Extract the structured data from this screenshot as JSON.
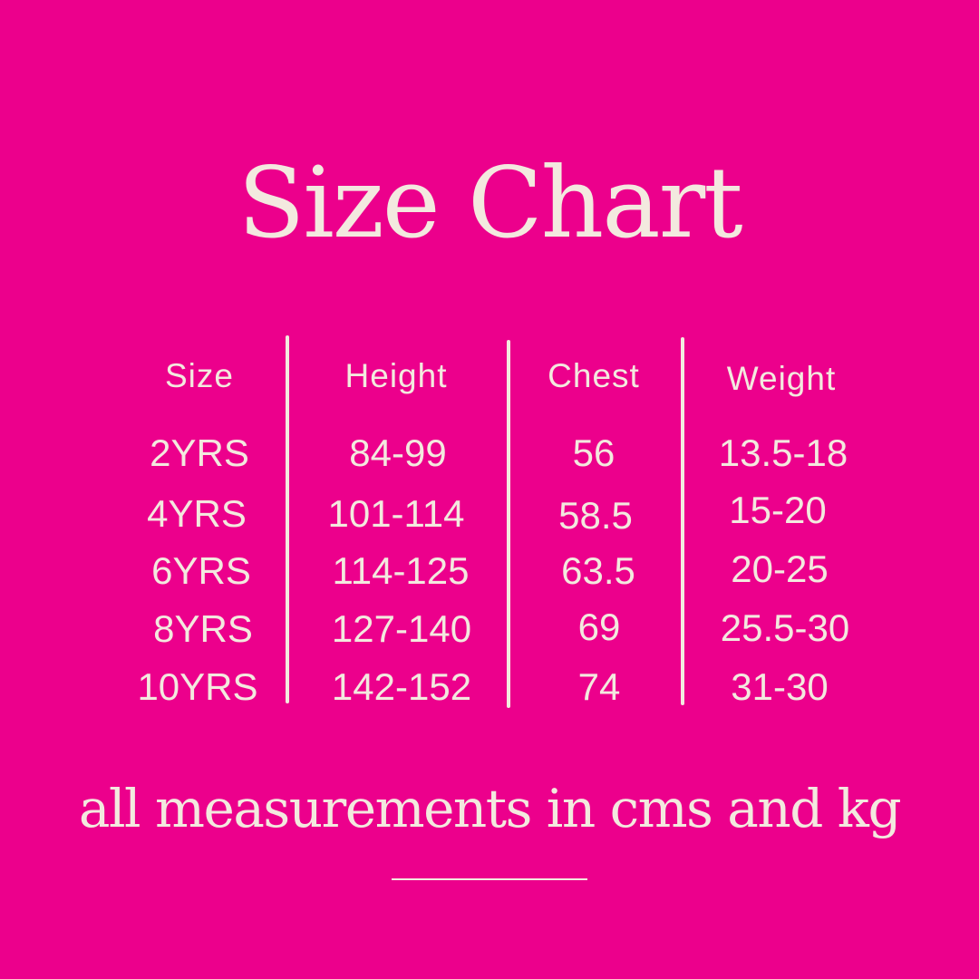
{
  "title": "Size Chart",
  "table": {
    "headers": [
      "Size",
      "Height",
      "Chest",
      "Weight"
    ],
    "rows": [
      [
        "2YRS",
        "84-99",
        "56",
        "13.5-18"
      ],
      [
        "4YRS",
        "101-114",
        "58.5",
        "15-20"
      ],
      [
        "6YRS",
        "114-125",
        "63.5",
        "20-25"
      ],
      [
        "8YRS",
        "127-140",
        "69",
        "25.5-30"
      ],
      [
        "10YRS",
        "142-152",
        "74",
        "31-30"
      ]
    ]
  },
  "footer": "all measurements in cms and kg",
  "colors": {
    "background": "#EC008C",
    "text": "#F3E9DF"
  }
}
